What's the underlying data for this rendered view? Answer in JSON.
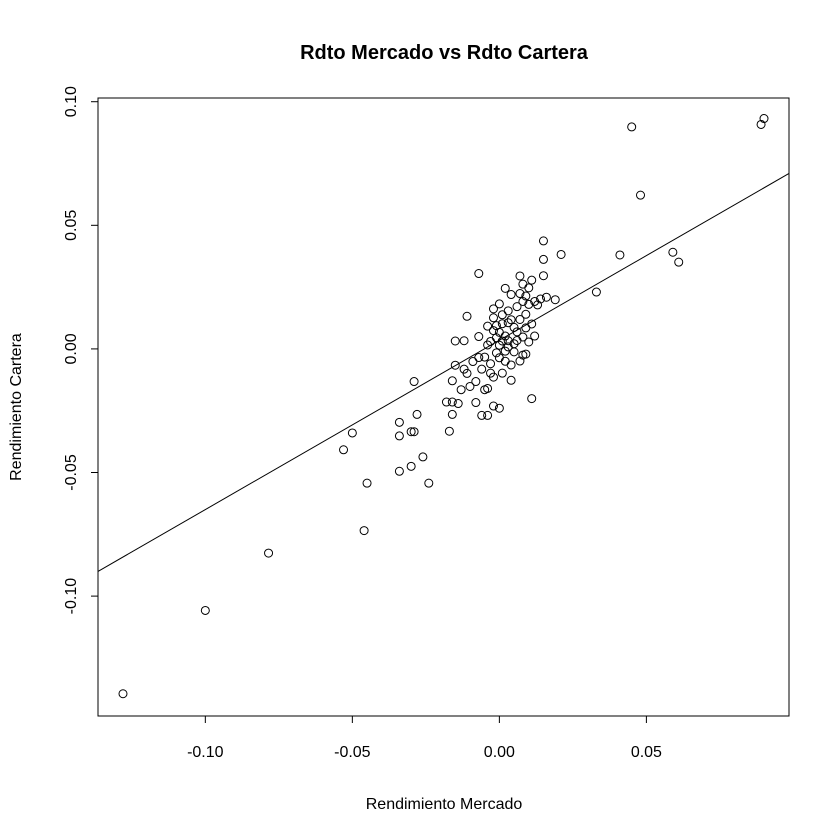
{
  "chart_data": {
    "type": "scatter",
    "title": "Rdto Mercado vs Rdto Cartera",
    "xlabel": "Rendimiento Mercado",
    "ylabel": "Rendimiento Cartera",
    "xlim": [
      -0.1365,
      0.0985
    ],
    "ylim": [
      -0.1485,
      0.1015
    ],
    "x_ticks": [
      -0.1,
      -0.05,
      0.0,
      0.05
    ],
    "x_tick_labels": [
      "-0.10",
      "-0.05",
      "0.00",
      "0.05"
    ],
    "y_ticks": [
      -0.1,
      -0.05,
      0.0,
      0.05,
      0.1
    ],
    "y_tick_labels": [
      "-0.10",
      "-0.05",
      "0.00",
      "0.05",
      "0.10"
    ],
    "grid": false,
    "legend": "none",
    "marker": "open-circle",
    "regression_line": {
      "intercept": 0.0035,
      "slope": 0.685
    },
    "points": [
      {
        "x": -0.128,
        "y": -0.1395
      },
      {
        "x": -0.1,
        "y": -0.1058
      },
      {
        "x": -0.0785,
        "y": -0.0826
      },
      {
        "x": -0.053,
        "y": -0.0408
      },
      {
        "x": -0.05,
        "y": -0.034
      },
      {
        "x": -0.046,
        "y": -0.0735
      },
      {
        "x": -0.045,
        "y": -0.0543
      },
      {
        "x": -0.034,
        "y": -0.0297
      },
      {
        "x": -0.034,
        "y": -0.0352
      },
      {
        "x": -0.034,
        "y": -0.0495
      },
      {
        "x": -0.03,
        "y": -0.0335
      },
      {
        "x": -0.03,
        "y": -0.0475
      },
      {
        "x": -0.029,
        "y": -0.0335
      },
      {
        "x": -0.029,
        "y": -0.0132
      },
      {
        "x": -0.028,
        "y": -0.0265
      },
      {
        "x": -0.026,
        "y": -0.0437
      },
      {
        "x": -0.024,
        "y": -0.0543
      },
      {
        "x": -0.018,
        "y": -0.0215
      },
      {
        "x": -0.017,
        "y": -0.0333
      },
      {
        "x": -0.016,
        "y": -0.0215
      },
      {
        "x": -0.016,
        "y": -0.0265
      },
      {
        "x": -0.016,
        "y": -0.0129
      },
      {
        "x": -0.015,
        "y": 0.0032
      },
      {
        "x": -0.015,
        "y": -0.0066
      },
      {
        "x": -0.014,
        "y": -0.0221
      },
      {
        "x": -0.013,
        "y": -0.0165
      },
      {
        "x": -0.012,
        "y": 0.0033
      },
      {
        "x": -0.012,
        "y": -0.0082
      },
      {
        "x": -0.011,
        "y": -0.0099
      },
      {
        "x": -0.011,
        "y": 0.0132
      },
      {
        "x": -0.01,
        "y": -0.0152
      },
      {
        "x": -0.009,
        "y": -0.0051
      },
      {
        "x": -0.008,
        "y": -0.0217
      },
      {
        "x": -0.008,
        "y": -0.0132
      },
      {
        "x": -0.007,
        "y": -0.0035
      },
      {
        "x": -0.007,
        "y": 0.005
      },
      {
        "x": -0.007,
        "y": 0.0305
      },
      {
        "x": -0.006,
        "y": -0.0269
      },
      {
        "x": -0.006,
        "y": -0.0082
      },
      {
        "x": -0.005,
        "y": -0.0033
      },
      {
        "x": -0.005,
        "y": -0.0165
      },
      {
        "x": -0.004,
        "y": -0.0269
      },
      {
        "x": -0.004,
        "y": -0.016
      },
      {
        "x": -0.004,
        "y": 0.0016
      },
      {
        "x": -0.004,
        "y": 0.0092
      },
      {
        "x": -0.003,
        "y": -0.0098
      },
      {
        "x": -0.003,
        "y": -0.006
      },
      {
        "x": -0.003,
        "y": 0.003
      },
      {
        "x": -0.002,
        "y": 0.0074
      },
      {
        "x": -0.002,
        "y": -0.0231
      },
      {
        "x": -0.002,
        "y": -0.0114
      },
      {
        "x": -0.002,
        "y": 0.0126
      },
      {
        "x": -0.002,
        "y": 0.0162
      },
      {
        "x": -0.001,
        "y": -0.0016
      },
      {
        "x": -0.001,
        "y": 0.0045
      },
      {
        "x": -0.001,
        "y": 0.0094
      },
      {
        "x": 0.0,
        "y": -0.024
      },
      {
        "x": 0.0,
        "y": 0.0015
      },
      {
        "x": 0.0,
        "y": 0.0067
      },
      {
        "x": 0.0,
        "y": -0.0036
      },
      {
        "x": 0.0,
        "y": 0.0182
      },
      {
        "x": 0.001,
        "y": -0.0098
      },
      {
        "x": 0.001,
        "y": 0.0102
      },
      {
        "x": 0.001,
        "y": 0.0138
      },
      {
        "x": 0.001,
        "y": 0.0032
      },
      {
        "x": 0.002,
        "y": 0.0245
      },
      {
        "x": 0.002,
        "y": 0.0052
      },
      {
        "x": 0.002,
        "y": -0.005
      },
      {
        "x": 0.002,
        "y": -0.0009
      },
      {
        "x": 0.003,
        "y": 0.0008
      },
      {
        "x": 0.003,
        "y": 0.0106
      },
      {
        "x": 0.003,
        "y": 0.0154
      },
      {
        "x": 0.003,
        "y": 0.0033
      },
      {
        "x": 0.004,
        "y": 0.022
      },
      {
        "x": 0.004,
        "y": 0.0118
      },
      {
        "x": 0.004,
        "y": -0.0065
      },
      {
        "x": 0.004,
        "y": -0.0127
      },
      {
        "x": 0.005,
        "y": 0.0087
      },
      {
        "x": 0.005,
        "y": 0.0021
      },
      {
        "x": 0.005,
        "y": -0.0012
      },
      {
        "x": 0.006,
        "y": 0.0171
      },
      {
        "x": 0.006,
        "y": 0.0069
      },
      {
        "x": 0.006,
        "y": 0.0034
      },
      {
        "x": 0.007,
        "y": 0.0295
      },
      {
        "x": 0.007,
        "y": 0.0224
      },
      {
        "x": 0.007,
        "y": 0.0119
      },
      {
        "x": 0.007,
        "y": -0.0049
      },
      {
        "x": 0.008,
        "y": 0.0262
      },
      {
        "x": 0.008,
        "y": 0.0192
      },
      {
        "x": 0.008,
        "y": 0.0048
      },
      {
        "x": 0.008,
        "y": -0.0025
      },
      {
        "x": 0.009,
        "y": 0.0214
      },
      {
        "x": 0.009,
        "y": 0.014
      },
      {
        "x": 0.009,
        "y": 0.0085
      },
      {
        "x": 0.009,
        "y": -0.0021
      },
      {
        "x": 0.01,
        "y": 0.0247
      },
      {
        "x": 0.01,
        "y": 0.018
      },
      {
        "x": 0.01,
        "y": 0.0028
      },
      {
        "x": 0.011,
        "y": 0.0278
      },
      {
        "x": 0.011,
        "y": 0.0101
      },
      {
        "x": 0.011,
        "y": -0.0201
      },
      {
        "x": 0.012,
        "y": 0.0192
      },
      {
        "x": 0.012,
        "y": 0.0052
      },
      {
        "x": 0.013,
        "y": 0.0178
      },
      {
        "x": 0.014,
        "y": 0.0202
      },
      {
        "x": 0.015,
        "y": 0.0437
      },
      {
        "x": 0.015,
        "y": 0.0362
      },
      {
        "x": 0.015,
        "y": 0.0296
      },
      {
        "x": 0.016,
        "y": 0.0209
      },
      {
        "x": 0.019,
        "y": 0.0199
      },
      {
        "x": 0.021,
        "y": 0.0382
      },
      {
        "x": 0.033,
        "y": 0.023
      },
      {
        "x": 0.041,
        "y": 0.038
      },
      {
        "x": 0.045,
        "y": 0.0898
      },
      {
        "x": 0.048,
        "y": 0.0622
      },
      {
        "x": 0.059,
        "y": 0.0391
      },
      {
        "x": 0.061,
        "y": 0.0351
      },
      {
        "x": 0.089,
        "y": 0.0908
      },
      {
        "x": 0.09,
        "y": 0.0932
      }
    ]
  }
}
